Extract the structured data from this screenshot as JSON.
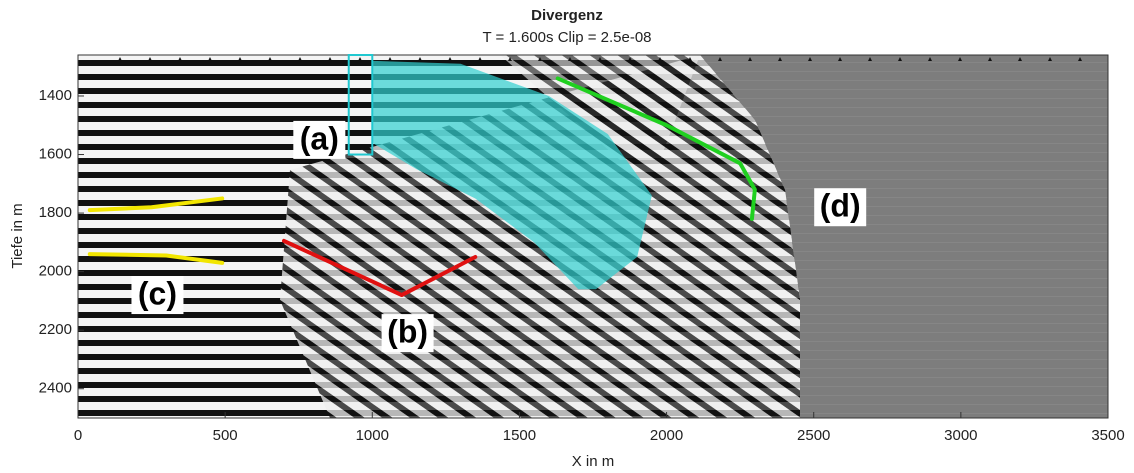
{
  "chart_data": {
    "type": "image",
    "title": "Divergenz",
    "subtitle": "T = 1.600s  Clip = 2.5e-08",
    "x_label": "X in m",
    "y_label": "Tiefe in m",
    "xlim": [
      0,
      3500
    ],
    "xticks": [
      0,
      500,
      1000,
      1500,
      2000,
      2500,
      3000,
      3500
    ],
    "ylim": [
      1260,
      2500
    ],
    "yticks": [
      1400,
      1600,
      1800,
      2000,
      2200,
      2400
    ],
    "y_reversed": true,
    "lines": [
      {
        "color": "#f2e600",
        "x": [
          40,
          250,
          490
        ],
        "y": [
          1790,
          1780,
          1750
        ]
      },
      {
        "color": "#f2e600",
        "x": [
          40,
          300,
          490
        ],
        "y": [
          1940,
          1945,
          1970
        ]
      },
      {
        "color": "#e01010",
        "x": [
          700,
          1100,
          1350
        ],
        "y": [
          1895,
          2080,
          1950
        ]
      },
      {
        "color": "#20d020",
        "x": [
          1630,
          2000,
          2250,
          2300,
          2290
        ],
        "y": [
          1340,
          1500,
          1630,
          1720,
          1820
        ]
      }
    ],
    "boxes": [
      {
        "color": "#20c8d0",
        "x": [
          920,
          1000
        ],
        "y": [
          1260,
          1600
        ]
      }
    ],
    "regions": [
      {
        "color": "#30d0d0",
        "x": [
          1000,
          1300,
          1600,
          1800,
          1950,
          1900,
          1760,
          1700,
          1550,
          1350,
          1150,
          1000
        ],
        "y": [
          1280,
          1290,
          1400,
          1530,
          1740,
          1950,
          2060,
          2060,
          1900,
          1750,
          1650,
          1560
        ]
      }
    ],
    "labels": [
      {
        "text": "(a)",
        "x": 820,
        "y": 1550
      },
      {
        "text": "(b)",
        "x": 1120,
        "y": 2210
      },
      {
        "text": "(c)",
        "x": 270,
        "y": 2080
      },
      {
        "text": "(d)",
        "x": 2590,
        "y": 1780
      }
    ]
  }
}
